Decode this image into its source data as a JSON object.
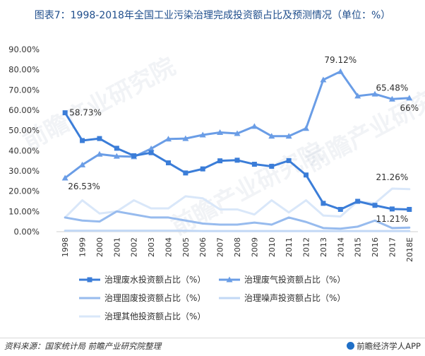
{
  "title": "图表7：1998-2018年全国工业污染治理完成投资额占比及预测情况（单位：%）",
  "source": "资料来源：国家统计局 前瞻产业研究院整理",
  "brand": "前瞻经济学人APP",
  "watermark": "前瞻产业研究院",
  "chart_data": {
    "type": "line",
    "categories": [
      "1998",
      "1999",
      "2000",
      "2001",
      "2002",
      "2003",
      "2004",
      "2005",
      "2006",
      "2007",
      "2008",
      "2009",
      "2010",
      "2011",
      "2012",
      "2013",
      "2014",
      "2015",
      "2016",
      "2017",
      "2018E"
    ],
    "ylim": [
      0,
      90
    ],
    "yticks": [
      "0.00%",
      "10.00%",
      "20.00%",
      "30.00%",
      "40.00%",
      "50.00%",
      "60.00%",
      "70.00%",
      "80.00%",
      "90.00%"
    ],
    "grid": false,
    "legend_position": "bottom",
    "series": [
      {
        "name": "治理废水投资额占比（%）",
        "color": "#3b7dd8",
        "marker": "square",
        "values": [
          58.73,
          45,
          46,
          41.2,
          37.5,
          39,
          34,
          29,
          31,
          35,
          35.3,
          33.3,
          32.3,
          35.1,
          28,
          14,
          11,
          15,
          13,
          11.21,
          11
        ]
      },
      {
        "name": "治理废气投资额占比（%）",
        "color": "#6a9de6",
        "marker": "triangle",
        "values": [
          26.53,
          33,
          38.3,
          37.3,
          37,
          41,
          45.8,
          46,
          47.8,
          49,
          48.5,
          52,
          47.2,
          47.2,
          51,
          75,
          79.12,
          67,
          68,
          65.48,
          66
        ]
      },
      {
        "name": "治理固废投资额占比（%）",
        "color": "#97bbee",
        "marker": "none",
        "values": [
          7,
          5.5,
          5,
          10,
          8.5,
          7,
          7,
          5.5,
          4,
          3.5,
          3.5,
          4.5,
          3.5,
          7,
          4.8,
          1.8,
          1.5,
          2.5,
          5.5,
          1.8,
          2
        ]
      },
      {
        "name": "治理噪声投资额占比（%）",
        "color": "#c2d8f5",
        "marker": "none",
        "values": [
          0.5,
          0.5,
          0.5,
          0.5,
          0.5,
          0.5,
          0.5,
          0.5,
          0.3,
          0.3,
          0.3,
          0.3,
          0.3,
          0.3,
          0.3,
          0.3,
          0.3,
          0.3,
          0.3,
          0.3,
          0.3
        ]
      },
      {
        "name": "治理其他投资额占比（%）",
        "color": "#d9e7f9",
        "marker": "none",
        "values": [
          7,
          15.5,
          9,
          10,
          15.5,
          11.5,
          11.5,
          17.5,
          16.5,
          11,
          11,
          8.5,
          15.5,
          9.5,
          15.5,
          8,
          7.5,
          15,
          14,
          21.26,
          21
        ]
      }
    ],
    "annotations": [
      {
        "text": "58.73%",
        "series": 0,
        "index": 0,
        "anchor": "right"
      },
      {
        "text": "26.53%",
        "series": 1,
        "index": 0,
        "anchor": "below-right"
      },
      {
        "text": "79.12%",
        "series": 1,
        "index": 16,
        "anchor": "above"
      },
      {
        "text": "65.48%",
        "series": 1,
        "index": 19,
        "anchor": "above"
      },
      {
        "text": "66%",
        "series": 1,
        "index": 20,
        "anchor": "below"
      },
      {
        "text": "21.26%",
        "series": 4,
        "index": 19,
        "anchor": "above"
      },
      {
        "text": "11.21%",
        "series": 0,
        "index": 19,
        "anchor": "below"
      }
    ]
  }
}
